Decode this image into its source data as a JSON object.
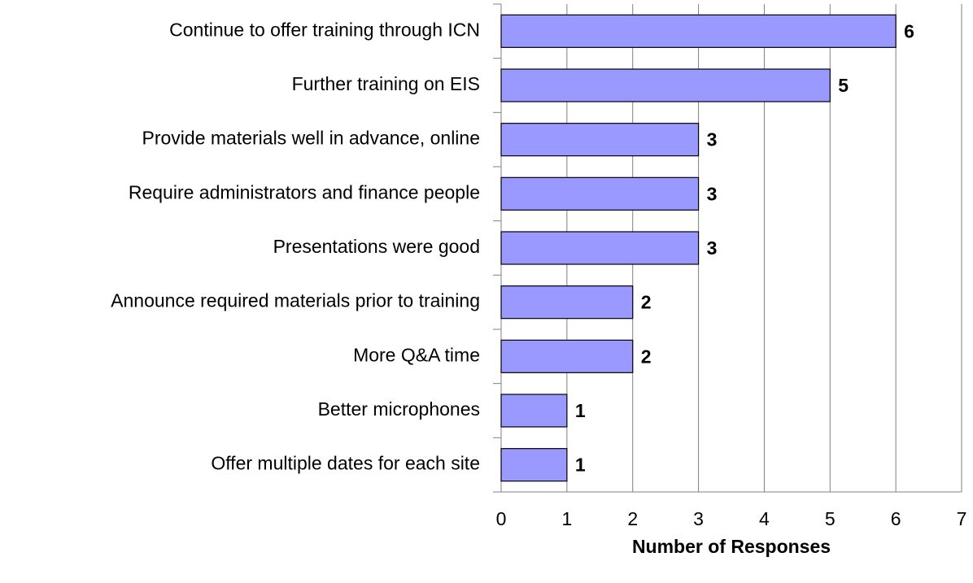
{
  "chart_data": {
    "type": "bar",
    "orientation": "horizontal",
    "x_label": "Number of Responses",
    "categories": [
      "Continue to offer training through ICN",
      "Further training on EIS",
      "Provide materials well in advance, online",
      "Require administrators and finance people",
      "Presentations were good",
      "Announce required materials prior to training",
      "More Q&A time",
      "Better microphones",
      "Offer multiple dates for each site"
    ],
    "values": [
      6,
      5,
      3,
      3,
      3,
      2,
      2,
      1,
      1
    ],
    "color": "#9999ff",
    "xlim": [
      0,
      7
    ],
    "xticks": [
      0,
      1,
      2,
      3,
      4,
      5,
      6,
      7
    ],
    "grid": true
  }
}
